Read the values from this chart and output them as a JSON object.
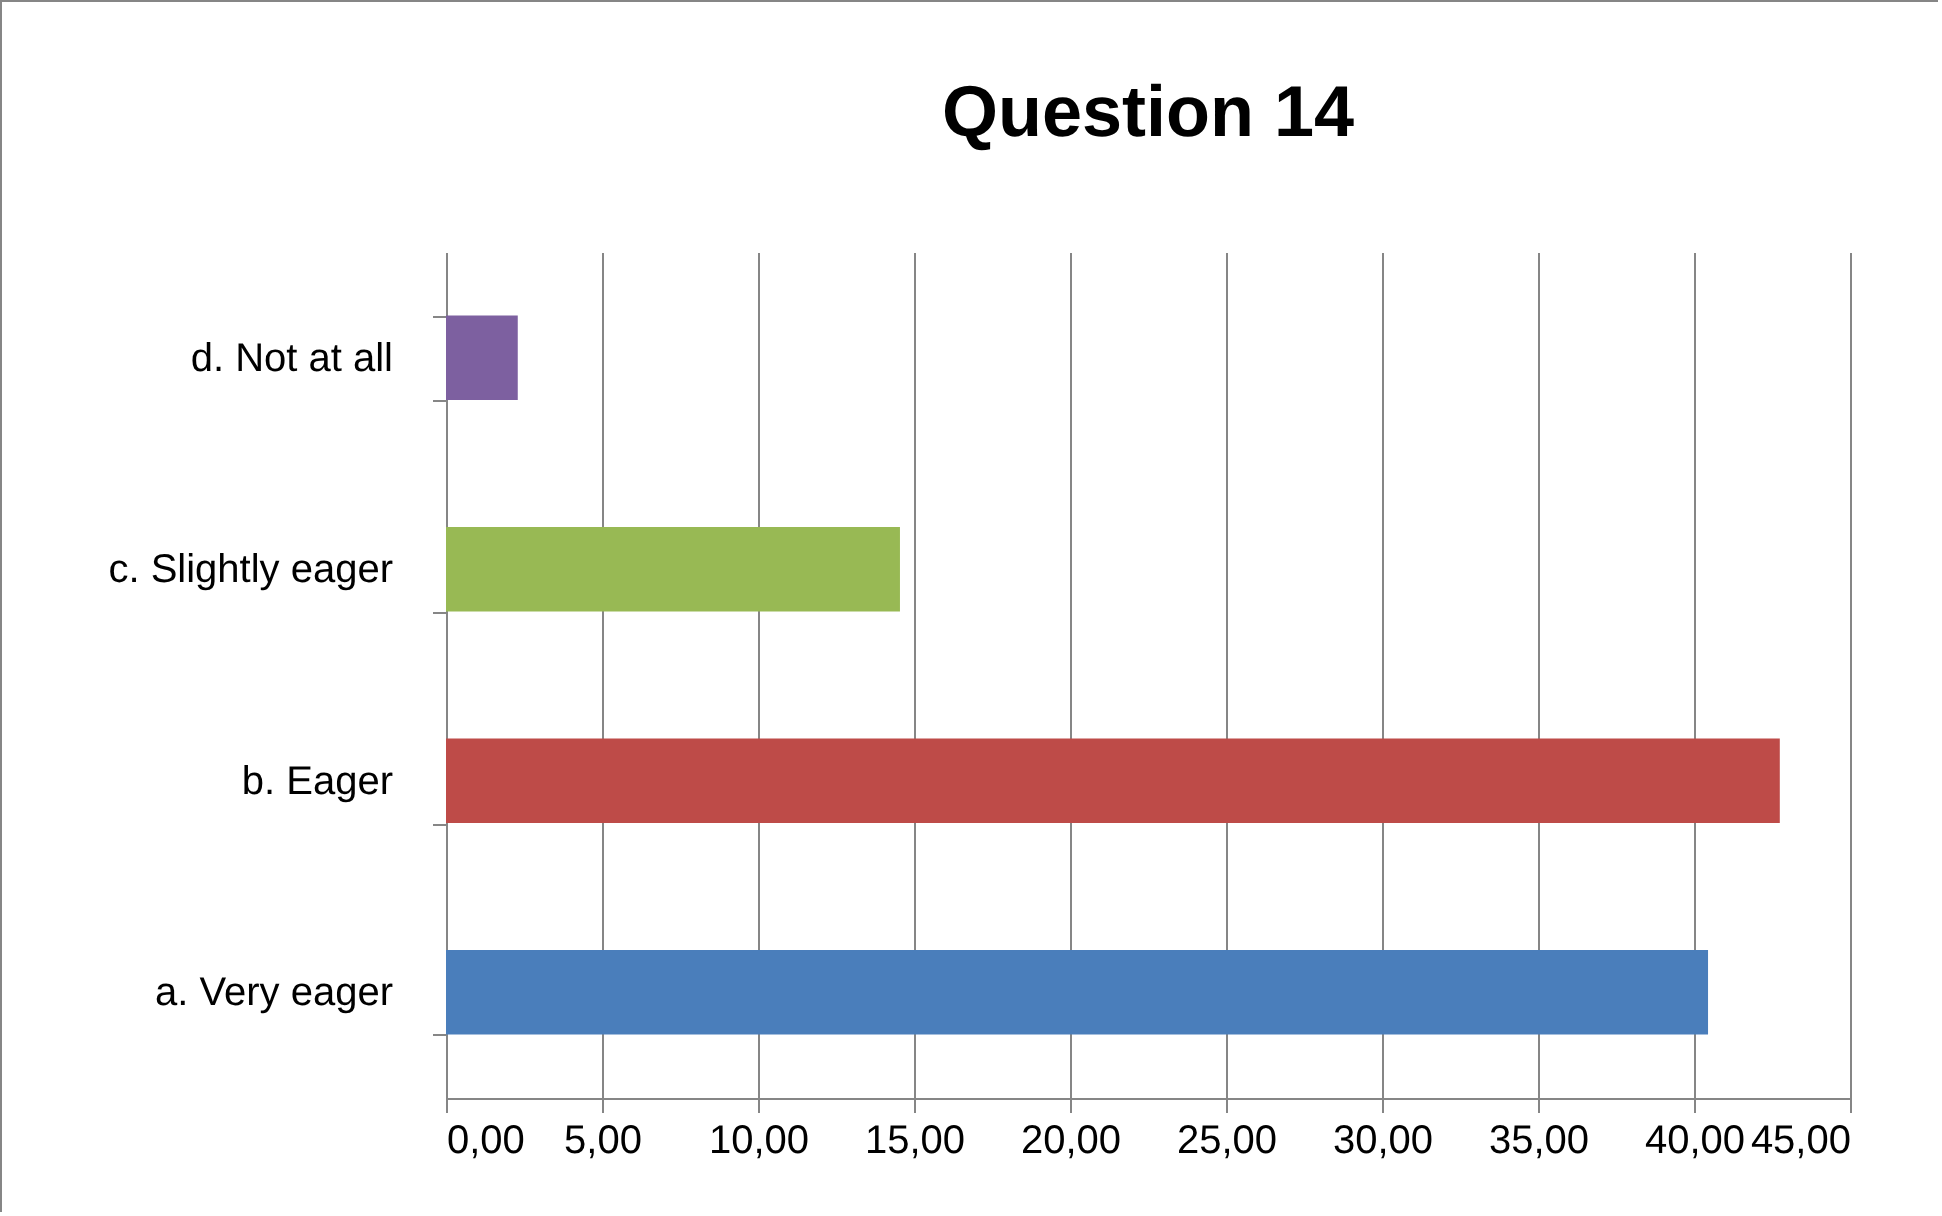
{
  "chart_data": {
    "type": "bar",
    "title": "Question 14",
    "orientation": "horizontal",
    "categories": [
      "d. Not at all",
      "c. Slightly eager",
      "b. Eager",
      "a. Very eager"
    ],
    "values": [
      2.3,
      14.55,
      42.75,
      40.45
    ],
    "colors": [
      "#7d60a0",
      "#98b954",
      "#be4b48",
      "#4a7ebb"
    ],
    "xlim": [
      0,
      45
    ],
    "xticks": [
      {
        "value": 0,
        "label": "0,00"
      },
      {
        "value": 5,
        "label": "5,00"
      },
      {
        "value": 10,
        "label": "10,00"
      },
      {
        "value": 15,
        "label": "15,00"
      },
      {
        "value": 20,
        "label": "20,00"
      },
      {
        "value": 25,
        "label": "25,00"
      },
      {
        "value": 30,
        "label": "30,00"
      },
      {
        "value": 35,
        "label": "35,00"
      },
      {
        "value": 40,
        "label": "40,00"
      },
      {
        "value": 45,
        "label": "45,00"
      }
    ],
    "grid": "x",
    "legend": false
  }
}
